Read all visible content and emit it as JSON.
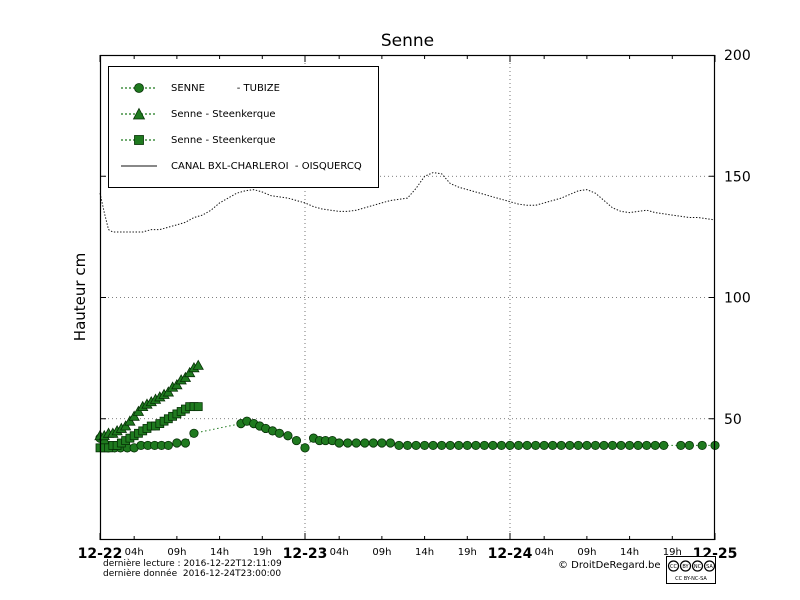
{
  "title": "Senne",
  "ylabel": "Hauteur cm",
  "colors": {
    "series_green": "#1f7a1f",
    "marker_edge": "#063006",
    "canal_black": "#111111",
    "grid": "#555555"
  },
  "legend": {
    "position": "upper left",
    "items": [
      {
        "label": "SENNE          - TUBIZE",
        "marker": "circle"
      },
      {
        "label": "Senne - Steenkerque",
        "marker": "triangle"
      },
      {
        "label": "Senne - Steenkerque",
        "marker": "square"
      },
      {
        "label": "CANAL BXL-CHARLEROI  - OISQUERCQ",
        "marker": "line"
      }
    ]
  },
  "footer": {
    "last_reading": "dernière lecture : 2016-12-22T12:11:09",
    "last_data": "dernière donnée  2016-12-24T23:00:00",
    "copyright": "© DroitDeRegard.be",
    "license": "CC BY-NC-SA",
    "license_parts": [
      "CC",
      "BY",
      "NC",
      "SA"
    ]
  },
  "chart_data": {
    "type": "line",
    "title": "Senne",
    "xlabel": "",
    "ylabel": "Hauteur cm",
    "x_unit": "hours since 2016-12-22 00:00",
    "xlim_hours": [
      0,
      72
    ],
    "ylim": [
      0,
      200
    ],
    "grid_on": true,
    "legend_position": "upper left",
    "yticks": [
      {
        "value": 200,
        "label": "200"
      },
      {
        "value": 150,
        "label": "150"
      },
      {
        "value": 100,
        "label": "100"
      },
      {
        "value": 50,
        "label": "50"
      }
    ],
    "x_major_ticks": [
      {
        "hour": 0,
        "label": "12-22"
      },
      {
        "hour": 24,
        "label": "12-23"
      },
      {
        "hour": 48,
        "label": "12-24"
      },
      {
        "hour": 72,
        "label": "12-25"
      }
    ],
    "x_minor_ticks": [
      {
        "hour": 4,
        "label": "04h"
      },
      {
        "hour": 9,
        "label": "09h"
      },
      {
        "hour": 14,
        "label": "14h"
      },
      {
        "hour": 19,
        "label": "19h"
      },
      {
        "hour": 28,
        "label": "04h"
      },
      {
        "hour": 33,
        "label": "09h"
      },
      {
        "hour": 38,
        "label": "14h"
      },
      {
        "hour": 43,
        "label": "19h"
      },
      {
        "hour": 52,
        "label": "04h"
      },
      {
        "hour": 57,
        "label": "09h"
      },
      {
        "hour": 62,
        "label": "14h"
      },
      {
        "hour": 67,
        "label": "19h"
      }
    ],
    "grid": {
      "x_hours": [
        24,
        48
      ],
      "y_values": [
        50,
        100,
        150
      ]
    },
    "series": [
      {
        "id": "canal",
        "name": "CANAL BXL-CHARLEROI - OISQUERCQ",
        "marker": "none",
        "line": "fine-dotted",
        "color": "#111111",
        "points": [
          [
            0,
            143
          ],
          [
            0.5,
            135
          ],
          [
            1,
            128
          ],
          [
            1.5,
            127
          ],
          [
            2,
            127
          ],
          [
            3,
            127
          ],
          [
            4,
            127
          ],
          [
            5,
            127
          ],
          [
            6,
            128
          ],
          [
            7,
            128
          ],
          [
            8,
            129
          ],
          [
            9,
            130
          ],
          [
            10,
            131
          ],
          [
            11,
            133
          ],
          [
            12,
            134
          ],
          [
            13,
            136
          ],
          [
            14,
            139
          ],
          [
            15,
            141
          ],
          [
            16,
            143
          ],
          [
            17,
            144
          ],
          [
            18,
            144.5
          ],
          [
            19,
            143.5
          ],
          [
            20,
            142
          ],
          [
            21,
            141.5
          ],
          [
            22,
            141
          ],
          [
            23,
            140
          ],
          [
            24,
            139
          ],
          [
            25,
            137.5
          ],
          [
            26,
            136.5
          ],
          [
            27,
            136
          ],
          [
            28,
            135.5
          ],
          [
            29,
            135.5
          ],
          [
            30,
            136
          ],
          [
            31,
            137
          ],
          [
            32,
            138
          ],
          [
            33,
            139
          ],
          [
            34,
            140
          ],
          [
            35,
            140.5
          ],
          [
            36,
            141
          ],
          [
            37,
            145
          ],
          [
            38,
            150
          ],
          [
            39,
            151.5
          ],
          [
            40,
            151
          ],
          [
            41,
            147
          ],
          [
            42,
            145.5
          ],
          [
            43,
            144.5
          ],
          [
            44,
            143.5
          ],
          [
            45,
            142.5
          ],
          [
            46,
            141.5
          ],
          [
            47,
            140.5
          ],
          [
            48,
            139.5
          ],
          [
            49,
            138.5
          ],
          [
            50,
            138
          ],
          [
            51,
            138
          ],
          [
            52,
            139
          ],
          [
            53,
            140
          ],
          [
            54,
            141
          ],
          [
            55,
            142.5
          ],
          [
            56,
            144
          ],
          [
            57,
            144.5
          ],
          [
            58,
            143
          ],
          [
            59,
            140
          ],
          [
            60,
            137
          ],
          [
            61,
            135.5
          ],
          [
            62,
            135
          ],
          [
            63,
            135.5
          ],
          [
            64,
            136
          ],
          [
            65,
            135
          ],
          [
            66,
            134.5
          ],
          [
            67,
            134
          ],
          [
            68,
            133.5
          ],
          [
            69,
            133
          ],
          [
            70,
            133
          ],
          [
            71,
            132.5
          ],
          [
            72,
            132
          ]
        ]
      },
      {
        "id": "tubize",
        "name": "SENNE - TUBIZE",
        "marker": "circle",
        "line": "dotted",
        "color": "#1f7a1f",
        "points": [
          [
            0,
            42
          ],
          [
            0.5,
            40
          ],
          [
            1,
            38
          ],
          [
            1.7,
            38
          ],
          [
            2.4,
            38
          ],
          [
            3.2,
            38
          ],
          [
            4,
            38
          ],
          [
            4.8,
            39
          ],
          [
            5.6,
            39
          ],
          [
            6.4,
            39
          ],
          [
            7.2,
            39
          ],
          [
            8,
            39
          ],
          [
            9,
            40
          ],
          [
            10,
            40
          ],
          [
            11,
            44
          ],
          [
            16.5,
            48
          ],
          [
            17.2,
            49
          ],
          [
            18,
            48
          ],
          [
            18.7,
            47
          ],
          [
            19.4,
            46
          ],
          [
            20.2,
            45
          ],
          [
            21,
            44
          ],
          [
            22,
            43
          ],
          [
            23,
            41
          ],
          [
            24,
            38
          ],
          [
            25,
            42
          ],
          [
            25.7,
            41
          ],
          [
            26.4,
            41
          ],
          [
            27.2,
            41
          ],
          [
            28,
            40
          ],
          [
            29,
            40
          ],
          [
            30,
            40
          ],
          [
            31,
            40
          ],
          [
            32,
            40
          ],
          [
            33,
            40
          ],
          [
            34,
            40
          ],
          [
            35,
            39
          ],
          [
            36,
            39
          ],
          [
            37,
            39
          ],
          [
            38,
            39
          ],
          [
            39,
            39
          ],
          [
            40,
            39
          ],
          [
            41,
            39
          ],
          [
            42,
            39
          ],
          [
            43,
            39
          ],
          [
            44,
            39
          ],
          [
            45,
            39
          ],
          [
            46,
            39
          ],
          [
            47,
            39
          ],
          [
            48,
            39
          ],
          [
            49,
            39
          ],
          [
            50,
            39
          ],
          [
            51,
            39
          ],
          [
            52,
            39
          ],
          [
            53,
            39
          ],
          [
            54,
            39
          ],
          [
            55,
            39
          ],
          [
            56,
            39
          ],
          [
            57,
            39
          ],
          [
            58,
            39
          ],
          [
            59,
            39
          ],
          [
            60,
            39
          ],
          [
            61,
            39
          ],
          [
            62,
            39
          ],
          [
            63,
            39
          ],
          [
            64,
            39
          ],
          [
            65,
            39
          ],
          [
            66,
            39
          ],
          [
            68,
            39
          ],
          [
            69,
            39
          ],
          [
            70.5,
            39
          ],
          [
            72,
            39
          ]
        ]
      },
      {
        "id": "steenkerque-triangles",
        "name": "Senne - Steenkerque",
        "marker": "triangle",
        "line": "dotted",
        "color": "#1f7a1f",
        "points": [
          [
            0,
            43
          ],
          [
            0.5,
            43
          ],
          [
            1,
            44
          ],
          [
            1.5,
            44
          ],
          [
            2,
            45
          ],
          [
            2.5,
            46
          ],
          [
            3,
            47
          ],
          [
            3.5,
            49
          ],
          [
            4,
            51
          ],
          [
            4.5,
            53
          ],
          [
            5,
            55
          ],
          [
            5.5,
            56
          ],
          [
            6,
            57
          ],
          [
            6.5,
            58
          ],
          [
            7,
            59
          ],
          [
            7.5,
            60
          ],
          [
            8,
            61
          ],
          [
            8.5,
            63
          ],
          [
            9,
            64
          ],
          [
            9.5,
            66
          ],
          [
            10,
            67
          ],
          [
            10.5,
            69
          ],
          [
            11,
            71
          ],
          [
            11.5,
            72
          ]
        ]
      },
      {
        "id": "steenkerque-squares",
        "name": "Senne - Steenkerque",
        "marker": "square",
        "line": "dotted",
        "color": "#1f7a1f",
        "points": [
          [
            0,
            38
          ],
          [
            0.5,
            38
          ],
          [
            1,
            38
          ],
          [
            1.5,
            39
          ],
          [
            2,
            39
          ],
          [
            2.5,
            40
          ],
          [
            3,
            41
          ],
          [
            3.5,
            42
          ],
          [
            4,
            43
          ],
          [
            4.5,
            44
          ],
          [
            5,
            45
          ],
          [
            5.5,
            46
          ],
          [
            6,
            47
          ],
          [
            6.5,
            47
          ],
          [
            7,
            48
          ],
          [
            7.5,
            49
          ],
          [
            8,
            50
          ],
          [
            8.5,
            51
          ],
          [
            9,
            52
          ],
          [
            9.5,
            53
          ],
          [
            10,
            54
          ],
          [
            10.5,
            55
          ],
          [
            11,
            55
          ],
          [
            11.5,
            55
          ]
        ]
      }
    ]
  }
}
